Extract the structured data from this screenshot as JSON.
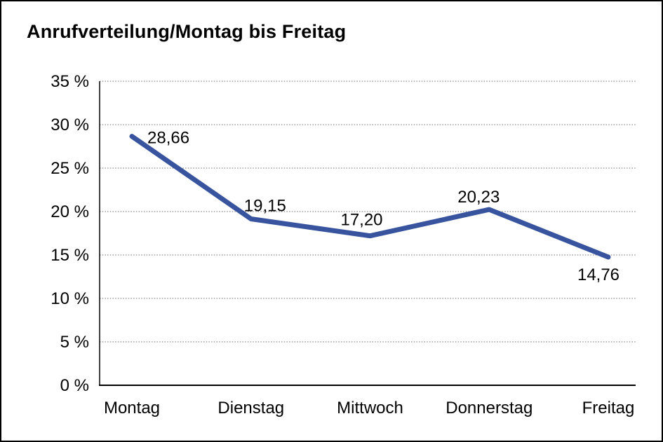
{
  "chart_data": {
    "type": "line",
    "title": "Anrufverteilung/Montag bis Freitag",
    "categories": [
      "Montag",
      "Dienstag",
      "Mittwoch",
      "Donnerstag",
      "Freitag"
    ],
    "values": [
      28.66,
      19.15,
      17.2,
      20.23,
      14.76
    ],
    "value_labels": [
      "28,66",
      "19,15",
      "17,20",
      "20,23",
      "14,76"
    ],
    "xlabel": "",
    "ylabel": "",
    "ylim": [
      0,
      35
    ],
    "ytick_step": 5,
    "ytick_labels": [
      "0 %",
      "5 %",
      "10 %",
      "15 %",
      "20 %",
      "25 %",
      "30 %",
      "35 %"
    ],
    "grid": "horizontal-dotted",
    "legend": "none",
    "line_color": "#38549E",
    "axis_color": "#000000",
    "gridline_color": "#6e6e6e",
    "text_color": "#000000"
  }
}
